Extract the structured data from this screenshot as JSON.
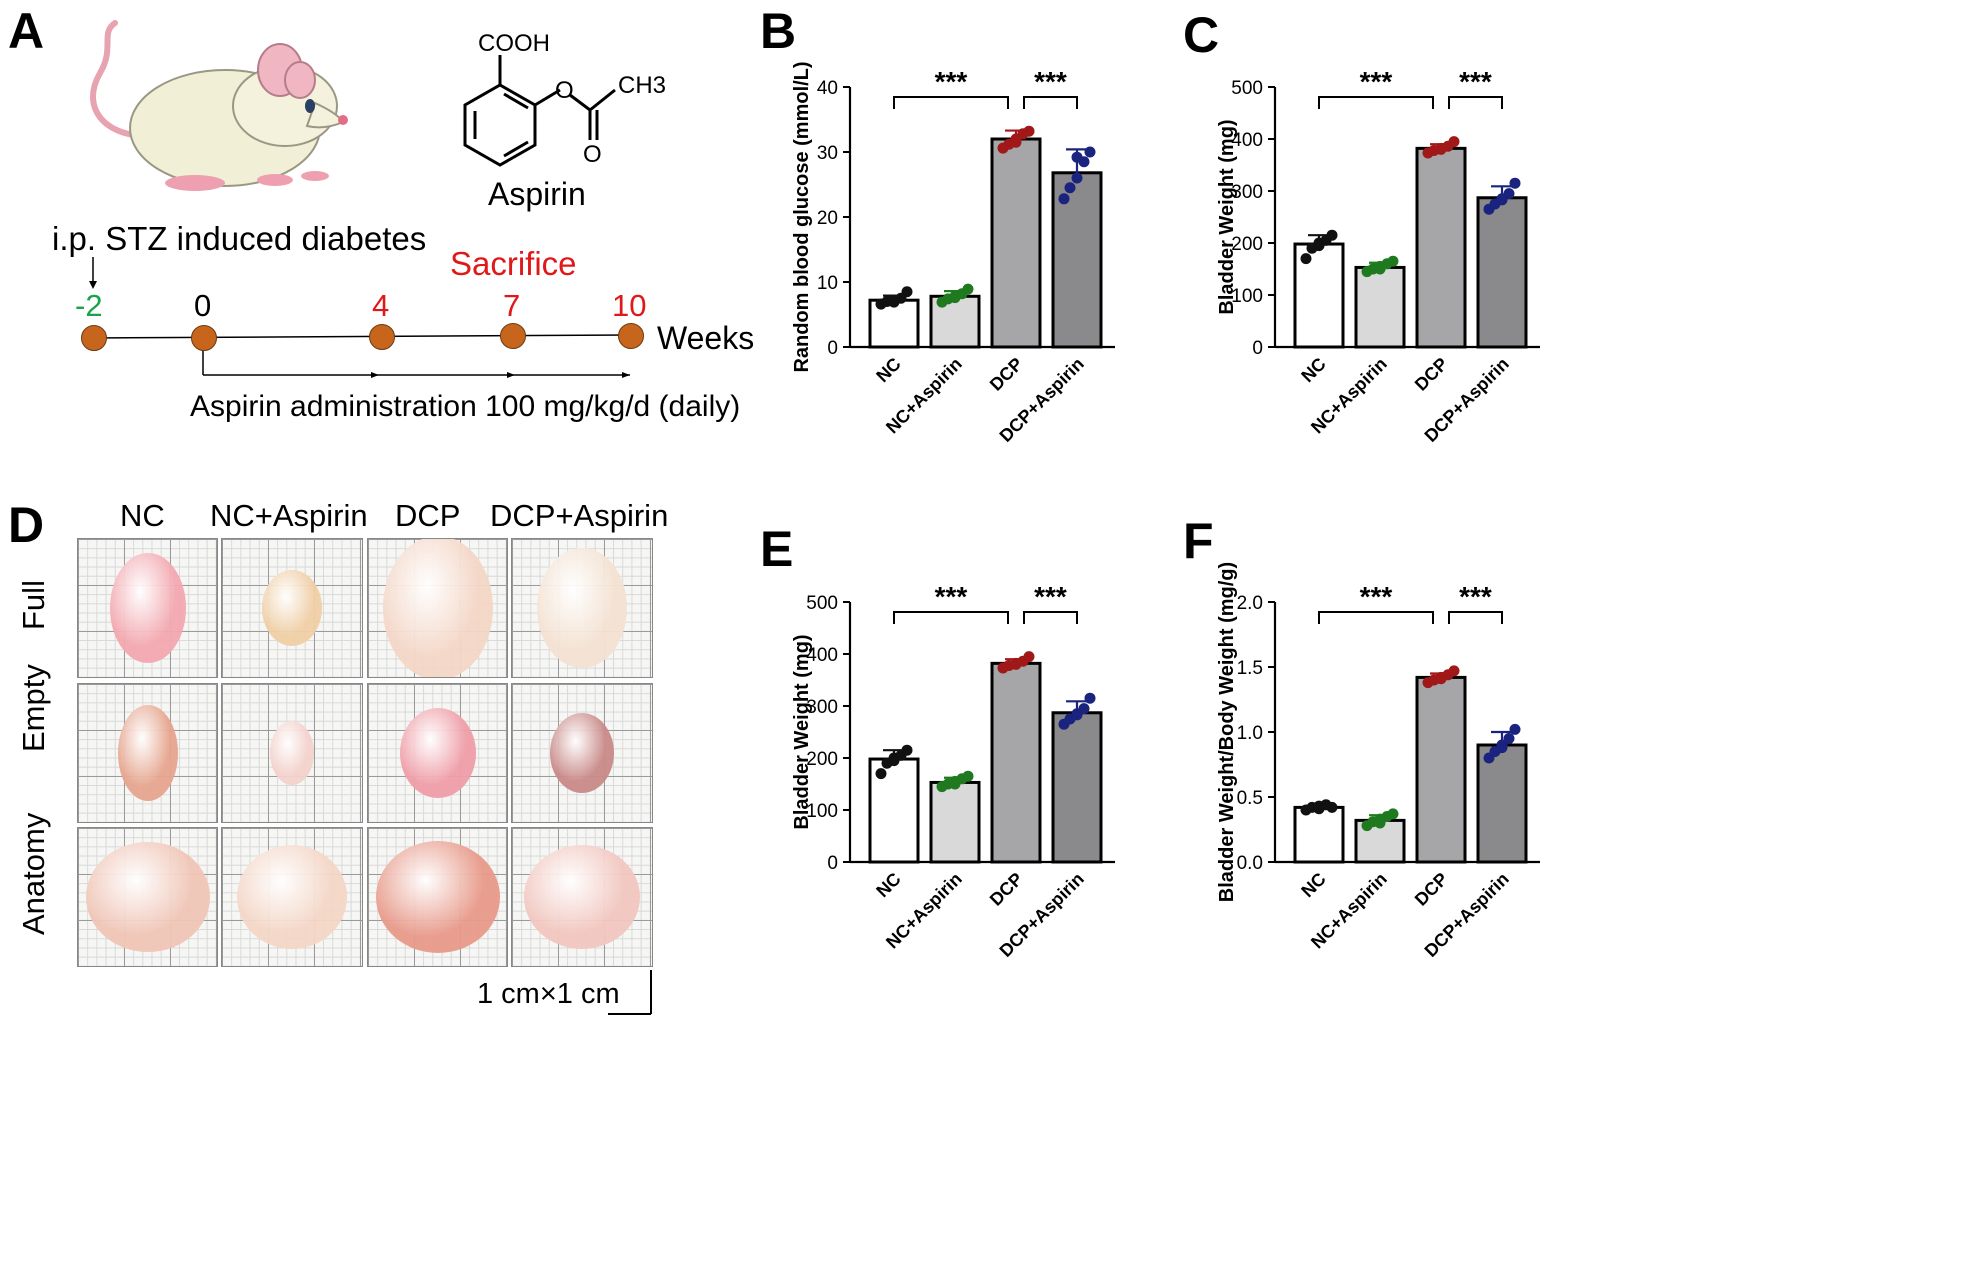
{
  "panel_letters": {
    "a": "A",
    "b": "B",
    "c": "C",
    "d": "D",
    "e": "E",
    "f": "F"
  },
  "panel_a": {
    "molecule": {
      "top_group": "COOH",
      "side_group": "CH3",
      "side_subscript": "3",
      "name": "Aspirin"
    },
    "stz_label": "i.p. STZ  induced diabetes",
    "sacrifice_label": "Sacrifice",
    "weeks_label": "Weeks",
    "admin_label": "Aspirin administration 100 mg/kg/d (daily)",
    "timepoints": [
      {
        "label": "-2",
        "color": "#1aa34a"
      },
      {
        "label": "0",
        "color": "#000000"
      },
      {
        "label": "4",
        "color": "#e01818"
      },
      {
        "label": "7",
        "color": "#e01818"
      },
      {
        "label": "10",
        "color": "#e01818"
      }
    ],
    "colors": {
      "dot": "#c8651d",
      "red": "#e01818",
      "green": "#1aa34a"
    }
  },
  "panel_d": {
    "columns": [
      "NC",
      "NC+Aspirin",
      "DCP",
      "DCP+Aspirin"
    ],
    "rows": [
      "Full",
      "Empty",
      "Anatomy"
    ],
    "scale_label": "1 cm×1 cm"
  },
  "chart_data": [
    {
      "panel": "B",
      "type": "bar",
      "ylabel": "Random blood glucose (mmol/L)",
      "ylim": [
        0,
        40
      ],
      "yticks": [
        0,
        10,
        20,
        30,
        40
      ],
      "categories": [
        "NC",
        "NC+Aspirin",
        "DCP",
        "DCP+Aspirin"
      ],
      "values": [
        7.2,
        7.8,
        32.0,
        26.8
      ],
      "errors": [
        0.7,
        0.8,
        1.3,
        3.6
      ],
      "points": [
        [
          6.6,
          7.0,
          7.2,
          7.5,
          8.5,
          6.9
        ],
        [
          6.9,
          7.4,
          7.8,
          8.2,
          8.9,
          7.6
        ],
        [
          30.6,
          31.2,
          32.0,
          32.8,
          33.2,
          31.5
        ],
        [
          22.8,
          24.5,
          26.0,
          28.5,
          30.0,
          29.2
        ]
      ],
      "point_colors": [
        "#111111",
        "#1f7a1f",
        "#a01818",
        "#1a237e"
      ],
      "bar_fills": [
        "#ffffff",
        "#d9d9d9",
        "#a6a6a8",
        "#8a8a8c"
      ],
      "significance": [
        {
          "from": 0,
          "to": 2,
          "label": "***"
        },
        {
          "from": 2,
          "to": 3,
          "label": "***"
        }
      ]
    },
    {
      "panel": "C",
      "type": "bar",
      "ylabel": "Bladder Weight (mg)",
      "ylim": [
        0,
        500
      ],
      "yticks": [
        0,
        100,
        200,
        300,
        400,
        500
      ],
      "categories": [
        "NC",
        "NC+Aspirin",
        "DCP",
        "DCP+Aspirin"
      ],
      "values": [
        198,
        153,
        382,
        287
      ],
      "errors": [
        17,
        9,
        8,
        22
      ],
      "points": [
        [
          170,
          190,
          200,
          205,
          215,
          195
        ],
        [
          145,
          150,
          155,
          160,
          165,
          150
        ],
        [
          373,
          378,
          382,
          386,
          395,
          380
        ],
        [
          265,
          275,
          285,
          295,
          315,
          283
        ]
      ],
      "point_colors": [
        "#111111",
        "#1f7a1f",
        "#a01818",
        "#1a237e"
      ],
      "bar_fills": [
        "#ffffff",
        "#d9d9d9",
        "#a6a6a8",
        "#8a8a8c"
      ],
      "significance": [
        {
          "from": 0,
          "to": 2,
          "label": "***"
        },
        {
          "from": 2,
          "to": 3,
          "label": "***"
        }
      ]
    },
    {
      "panel": "E",
      "type": "bar",
      "ylabel": "Bladder Weight (mg)",
      "ylim": [
        0,
        500
      ],
      "yticks": [
        0,
        100,
        200,
        300,
        400,
        500
      ],
      "categories": [
        "NC",
        "NC+Aspirin",
        "DCP",
        "DCP+Aspirin"
      ],
      "values": [
        198,
        153,
        382,
        287
      ],
      "errors": [
        17,
        9,
        8,
        22
      ],
      "points": [
        [
          170,
          190,
          200,
          205,
          215,
          195
        ],
        [
          145,
          150,
          155,
          160,
          165,
          150
        ],
        [
          373,
          378,
          382,
          386,
          395,
          380
        ],
        [
          265,
          275,
          285,
          295,
          315,
          283
        ]
      ],
      "point_colors": [
        "#111111",
        "#1f7a1f",
        "#a01818",
        "#1a237e"
      ],
      "bar_fills": [
        "#ffffff",
        "#d9d9d9",
        "#a6a6a8",
        "#8a8a8c"
      ],
      "significance": [
        {
          "from": 0,
          "to": 2,
          "label": "***"
        },
        {
          "from": 2,
          "to": 3,
          "label": "***"
        }
      ]
    },
    {
      "panel": "F",
      "type": "bar",
      "ylabel": "Bladder Weight/Body Weight (mg/g)",
      "ylim": [
        0,
        2.0
      ],
      "yticks": [
        0.0,
        0.5,
        1.0,
        1.5,
        2.0
      ],
      "tick_decimals": 1,
      "categories": [
        "NC",
        "NC+Aspirin",
        "DCP",
        "DCP+Aspirin"
      ],
      "values": [
        0.42,
        0.32,
        1.42,
        0.9
      ],
      "errors": [
        0.02,
        0.04,
        0.03,
        0.1
      ],
      "points": [
        [
          0.4,
          0.42,
          0.43,
          0.44,
          0.42,
          0.41
        ],
        [
          0.28,
          0.31,
          0.33,
          0.35,
          0.37,
          0.3
        ],
        [
          1.38,
          1.4,
          1.42,
          1.44,
          1.47,
          1.41
        ],
        [
          0.8,
          0.85,
          0.9,
          0.95,
          1.02,
          0.88
        ]
      ],
      "point_colors": [
        "#111111",
        "#1f7a1f",
        "#a01818",
        "#1a237e"
      ],
      "bar_fills": [
        "#ffffff",
        "#d9d9d9",
        "#a6a6a8",
        "#8a8a8c"
      ],
      "significance": [
        {
          "from": 0,
          "to": 2,
          "label": "***"
        },
        {
          "from": 2,
          "to": 3,
          "label": "***"
        }
      ]
    }
  ]
}
